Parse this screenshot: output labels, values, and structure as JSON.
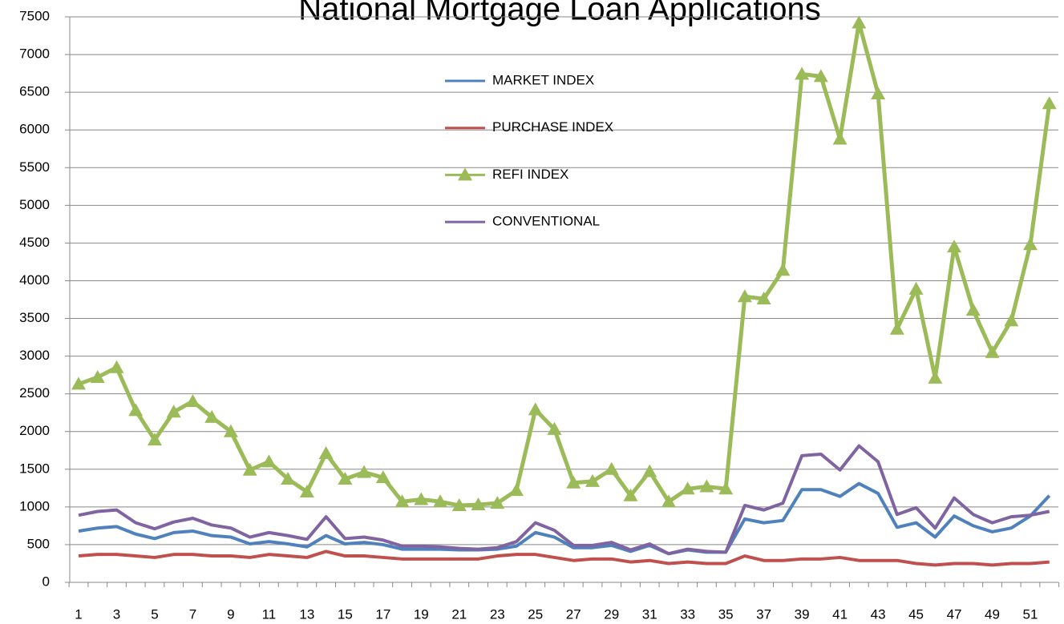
{
  "chart_data": {
    "type": "line",
    "title": "National Mortgage Loan Applications",
    "categories": [
      "1",
      null,
      "3",
      null,
      "5",
      null,
      "7",
      null,
      "9",
      null,
      "11",
      null,
      "13",
      null,
      "15",
      null,
      "17",
      null,
      "19",
      null,
      "21",
      null,
      "23",
      null,
      "25",
      null,
      "27",
      null,
      "29",
      null,
      "31",
      null,
      "33",
      null,
      "35",
      null,
      "37",
      null,
      "39",
      null,
      "41",
      null,
      "43",
      null,
      "45",
      null,
      "47",
      null,
      "49",
      null,
      "51",
      null
    ],
    "series": [
      {
        "name": "MARKET INDEX",
        "color": "#4f81bd",
        "values": [
          680,
          720,
          740,
          640,
          580,
          660,
          680,
          620,
          600,
          510,
          540,
          510,
          470,
          620,
          510,
          530,
          500,
          440,
          440,
          440,
          430,
          430,
          440,
          480,
          660,
          600,
          460,
          460,
          490,
          410,
          490,
          380,
          430,
          400,
          400,
          840,
          790,
          820,
          1230,
          1230,
          1140,
          1310,
          1180,
          730,
          790,
          600,
          880,
          750,
          670,
          720,
          880,
          1150
        ]
      },
      {
        "name": "PURCHASE INDEX",
        "color": "#c0504d",
        "values": [
          350,
          370,
          370,
          350,
          330,
          370,
          370,
          350,
          350,
          330,
          370,
          350,
          330,
          410,
          350,
          350,
          330,
          310,
          310,
          310,
          310,
          310,
          350,
          370,
          370,
          330,
          290,
          310,
          310,
          270,
          290,
          250,
          270,
          250,
          250,
          350,
          290,
          290,
          310,
          310,
          330,
          290,
          290,
          290,
          250,
          230,
          250,
          250,
          230,
          250,
          250,
          270
        ]
      },
      {
        "name": "REFI INDEX",
        "color": "#9bbb59",
        "marker": "triangle",
        "values": [
          2630,
          2720,
          2850,
          2280,
          1890,
          2260,
          2400,
          2190,
          2000,
          1490,
          1600,
          1370,
          1200,
          1710,
          1370,
          1460,
          1390,
          1070,
          1100,
          1070,
          1020,
          1030,
          1050,
          1220,
          2290,
          2030,
          1320,
          1340,
          1500,
          1150,
          1470,
          1070,
          1240,
          1270,
          1240,
          3790,
          3760,
          4140,
          6740,
          6710,
          5880,
          7420,
          6480,
          3360,
          3890,
          2710,
          4450,
          3610,
          3050,
          3470,
          4480,
          6350
        ]
      },
      {
        "name": "CONVENTIONAL",
        "color": "#8064a2",
        "values": [
          890,
          940,
          960,
          790,
          710,
          800,
          850,
          760,
          720,
          600,
          660,
          620,
          570,
          870,
          580,
          600,
          560,
          480,
          480,
          470,
          450,
          440,
          460,
          540,
          790,
          690,
          490,
          490,
          530,
          430,
          510,
          380,
          440,
          410,
          400,
          1020,
          960,
          1050,
          1680,
          1700,
          1490,
          1810,
          1600,
          900,
          990,
          720,
          1120,
          900,
          790,
          870,
          890,
          940
        ]
      }
    ],
    "ylim": [
      0,
      7500
    ],
    "yticks": [
      0,
      500,
      1000,
      1500,
      2000,
      2500,
      3000,
      3500,
      4000,
      4500,
      5000,
      5500,
      6000,
      6500,
      7000,
      7500
    ],
    "grid": true,
    "legend": "upper center"
  }
}
